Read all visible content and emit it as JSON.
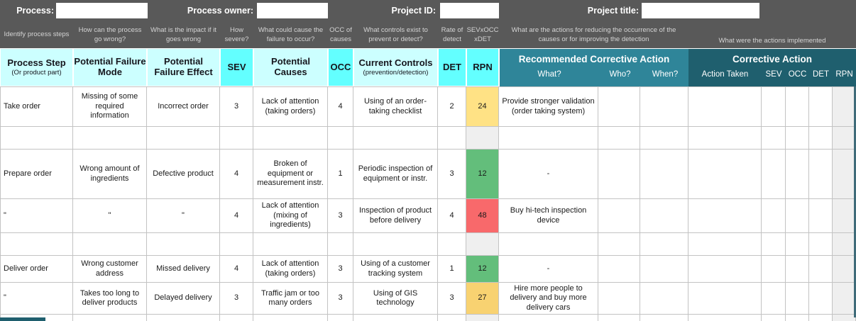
{
  "colors": {
    "top_bar_bg": "#595959",
    "header_cyan_light": "#ccffff",
    "header_cyan_bright": "#63ffff",
    "teal_light": "#2f8599",
    "teal_dark": "#1f5f6e",
    "rpn_green": "#63be7b",
    "rpn_yellow": "#ffe285",
    "rpn_orange": "#f8d271",
    "rpn_red": "#f8696b",
    "empty_gray": "#efefef"
  },
  "top_bar": {
    "fields": [
      {
        "label": "Process:",
        "value": ""
      },
      {
        "label": "Process owner:",
        "value": ""
      },
      {
        "label": "Project ID:",
        "value": ""
      },
      {
        "label": "Project title:",
        "value": ""
      }
    ]
  },
  "helper": {
    "items": [
      "Identify process steps",
      "How can the process go wrong?",
      "What is the impact if it goes wrong",
      "How severe?",
      "What could cause the failure to occur?",
      "OCC of causes",
      "What controls exist to prevent or detect?",
      "Rate of detect",
      "SEVxOCC xDET",
      "What are the actions for reducing the occurrence of the causes or for improving the detection",
      "What were the actions implemented"
    ]
  },
  "table": {
    "headers": {
      "process_step": {
        "title": "Process Step",
        "subtitle": "(Or product part)"
      },
      "failure_mode": "Potential Failure Mode",
      "failure_effect": "Potential Failure Effect",
      "sev": "SEV",
      "causes": "Potential Causes",
      "occ": "OCC",
      "controls": {
        "title": "Current Controls",
        "subtitle": "(prevention/detection)"
      },
      "det": "DET",
      "rpn": "RPN",
      "recommended": {
        "title": "Recommended Corrective Action",
        "sub": [
          "What?",
          "Who?",
          "When?"
        ]
      },
      "corrective": {
        "title": "Corrective Action",
        "sub": [
          "Action Taken",
          "SEV",
          "OCC",
          "DET",
          "RPN"
        ]
      }
    },
    "rows": [
      {
        "step": "Take order",
        "mode": "Missing of some required information",
        "effect": "Incorrect order",
        "sev": "3",
        "causes": "Lack of attention (taking orders)",
        "occ": "4",
        "controls": "Using of an order-taking checklist",
        "det": "2",
        "rpn": "24",
        "rpn_color": "rpn_yellow",
        "what": "Provide stronger validation (order taking system)"
      },
      {
        "rpn_color": "empty_gray"
      },
      {
        "step": "Prepare order",
        "mode": "Wrong amount of ingredients",
        "effect": "Defective product",
        "sev": "4",
        "causes": "Broken of equipment or measurement instr.",
        "occ": "1",
        "controls": "Periodic inspection of equipment or instr.",
        "det": "3",
        "rpn": "12",
        "rpn_color": "rpn_green",
        "what": "-"
      },
      {
        "step": "\"",
        "mode": "\"",
        "effect": "\"",
        "sev": "4",
        "causes": "Lack of attention (mixing of ingredients)",
        "occ": "3",
        "controls": "Inspection of product before delivery",
        "det": "4",
        "rpn": "48",
        "rpn_color": "rpn_red",
        "what": "Buy hi-tech inspection device"
      },
      {
        "rpn_color": "empty_gray"
      },
      {
        "step": "Deliver order",
        "mode": "Wrong customer address",
        "effect": "Missed delivery",
        "sev": "4",
        "causes": "Lack of attention (taking orders)",
        "occ": "3",
        "controls": "Using of a customer tracking system",
        "det": "1",
        "rpn": "12",
        "rpn_color": "rpn_green",
        "what": "-"
      },
      {
        "step": "\"",
        "mode": "Takes too long to deliver products",
        "effect": "Delayed delivery",
        "sev": "3",
        "causes": "Traffic jam or too many orders",
        "occ": "3",
        "controls": "Using of GIS technology",
        "det": "3",
        "rpn": "27",
        "rpn_color": "rpn_orange",
        "what": "Hire more people to delivery and buy more delivery cars"
      },
      {
        "rpn_color": "empty_gray"
      }
    ]
  }
}
